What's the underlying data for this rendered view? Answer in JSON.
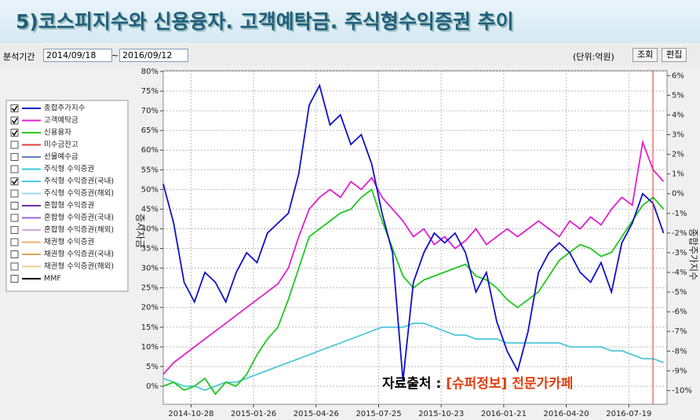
{
  "header": {
    "title": "5)코스피지수와 신용융자. 고객예탁금. 주식형수익증권 추이"
  },
  "toolbar": {
    "period_label": "분석기간",
    "start": "2014/09/18",
    "separator": "~",
    "end": "2016/09/12",
    "unit": "(단위:억원)",
    "query_button": "조회",
    "edit_button": "편집"
  },
  "legend_panel": {
    "items": [
      {
        "label": "미수금잔고",
        "color": "#e04040"
      },
      {
        "label": "선물예수금",
        "color": "#6080c0"
      },
      {
        "label": "주식형 수익증권",
        "color": "#33ccdd"
      },
      {
        "label": "주식형 수익증권(해외)",
        "color": "#99ddee"
      },
      {
        "label": "혼합형 수익증권",
        "color": "#7030a0"
      },
      {
        "label": "혼합형 수익증권(국내)",
        "color": "#9966cc"
      },
      {
        "label": "혼합형 수익증권(해외)",
        "color": "#ccaadd"
      },
      {
        "label": "채권형 수익증권",
        "color": "#f0b070"
      },
      {
        "label": "채권형 수익증권(국내)",
        "color": "#e0a060"
      },
      {
        "label": "채권형 수익증권(해외)",
        "color": "#f0c890"
      },
      {
        "label": "MMF",
        "color": "#000000"
      }
    ]
  },
  "source_note": {
    "prefix": "자료출처 : ",
    "source": "[슈퍼정보] 전문가카페"
  },
  "chart_data": {
    "type": "line",
    "ylabel": "증시자금",
    "y2label": "종합주가지수",
    "x": [
      "2014-09-18",
      "2014-10-03",
      "2014-10-18",
      "2014-11-02",
      "2014-11-17",
      "2014-12-02",
      "2014-12-17",
      "2015-01-01",
      "2015-01-16",
      "2015-01-31",
      "2015-02-15",
      "2015-03-02",
      "2015-03-17",
      "2015-04-01",
      "2015-04-16",
      "2015-05-01",
      "2015-05-16",
      "2015-05-31",
      "2015-06-15",
      "2015-06-30",
      "2015-07-15",
      "2015-07-30",
      "2015-08-14",
      "2015-08-29",
      "2015-09-13",
      "2015-09-28",
      "2015-10-13",
      "2015-10-28",
      "2015-11-12",
      "2015-11-27",
      "2015-12-12",
      "2015-12-27",
      "2016-01-11",
      "2016-01-26",
      "2016-02-10",
      "2016-02-25",
      "2016-03-11",
      "2016-03-26",
      "2016-04-10",
      "2016-04-25",
      "2016-05-10",
      "2016-05-25",
      "2016-06-09",
      "2016-06-24",
      "2016-07-09",
      "2016-07-24",
      "2016-08-08",
      "2016-08-23",
      "2016-09-07"
    ],
    "xlim": [
      "2014-09-18",
      "2016-09-12"
    ],
    "xticks": [
      "2014-10-28",
      "2015-01-26",
      "2015-04-26",
      "2015-07-25",
      "2015-10-23",
      "2016-01-21",
      "2016-04-20",
      "2016-07-19"
    ],
    "ylim": [
      -4.6,
      80.2
    ],
    "yticks": [
      {
        "value": 0,
        "label": "0%"
      },
      {
        "value": 5,
        "label": "5%"
      },
      {
        "value": 10,
        "label": "10%"
      },
      {
        "value": 15,
        "label": "15%"
      },
      {
        "value": 20,
        "label": "20%"
      },
      {
        "value": 25,
        "label": "25%"
      },
      {
        "value": 30,
        "label": "30%"
      },
      {
        "value": 35,
        "label": "35%"
      },
      {
        "value": 40,
        "label": "40%"
      },
      {
        "value": 45,
        "label": "45%"
      },
      {
        "value": 50,
        "label": "50%"
      },
      {
        "value": 55,
        "label": "55%"
      },
      {
        "value": 60,
        "label": "60%"
      },
      {
        "value": 65,
        "label": "65%"
      },
      {
        "value": 70,
        "label": "70%"
      },
      {
        "value": 75,
        "label": "75%"
      },
      {
        "value": 80,
        "label": "80%"
      }
    ],
    "y2lim": [
      -10.7,
      6.25
    ],
    "y2ticks": [
      {
        "value": -10,
        "label": "-10%"
      },
      {
        "value": -9,
        "label": "-9%"
      },
      {
        "value": -8,
        "label": "-8%"
      },
      {
        "value": -7,
        "label": "-7%"
      },
      {
        "value": -6,
        "label": "-6%"
      },
      {
        "value": -5,
        "label": "-5%"
      },
      {
        "value": -4,
        "label": "-4%"
      },
      {
        "value": -3,
        "label": "-3%"
      },
      {
        "value": -2,
        "label": "-2%"
      },
      {
        "value": -1,
        "label": "-1%"
      },
      {
        "value": 0,
        "label": "0%"
      },
      {
        "value": 1,
        "label": "1%"
      },
      {
        "value": 2,
        "label": "2%"
      },
      {
        "value": 3,
        "label": "3%"
      },
      {
        "value": 4,
        "label": "4%"
      },
      {
        "value": 5,
        "label": "5%"
      },
      {
        "value": 6,
        "label": "6%"
      }
    ],
    "grid": true,
    "series": [
      {
        "name": "종합주가지수",
        "color": "#1010c8",
        "axis": "y2",
        "values": [
          0.5,
          -1.5,
          -4.5,
          -5.5,
          -4,
          -4.5,
          -5.5,
          -4,
          -3,
          -3.5,
          -2,
          -1.5,
          -1,
          1,
          4.5,
          5.5,
          3.5,
          4,
          2.5,
          3,
          1.5,
          -1,
          -3,
          -9.5,
          -4.5,
          -3,
          -2,
          -2.5,
          -2,
          -3,
          -5,
          -4,
          -6.5,
          -8,
          -9,
          -7,
          -4,
          -3,
          -2.5,
          -3,
          -4,
          -4.5,
          -3.5,
          -5,
          -2.5,
          -1.5,
          0,
          -0.5,
          -2
        ]
      },
      {
        "name": "고객예탁금",
        "color": "#e020d0",
        "values": [
          3,
          6,
          8,
          10,
          12,
          14,
          16,
          18,
          20,
          22,
          24,
          26,
          30,
          38,
          45,
          48,
          50,
          48,
          52,
          50,
          53,
          48,
          45,
          42,
          38,
          40,
          36,
          38,
          35,
          37,
          40,
          36,
          38,
          40,
          38,
          40,
          42,
          40,
          38,
          42,
          40,
          43,
          41,
          45,
          48,
          46,
          62,
          55,
          52
        ]
      },
      {
        "name": "신용융자",
        "color": "#20c820",
        "values": [
          0,
          1,
          -1,
          0,
          2,
          -2,
          1,
          0,
          3,
          8,
          12,
          15,
          22,
          30,
          38,
          40,
          42,
          44,
          45,
          48,
          50,
          42,
          35,
          28,
          25,
          27,
          28,
          29,
          30,
          31,
          28,
          27,
          25,
          22,
          20,
          22,
          24,
          28,
          32,
          34,
          36,
          35,
          33,
          34,
          38,
          42,
          46,
          48,
          45
        ]
      },
      {
        "name": "주식형 수익증권(국내)",
        "color": "#50c8d8",
        "values": [
          2,
          1,
          0,
          0,
          -1,
          0,
          1,
          1,
          2,
          3,
          4,
          5,
          6,
          7,
          8,
          9,
          10,
          11,
          12,
          13,
          14,
          15,
          15,
          15,
          16,
          16,
          15,
          14,
          13,
          13,
          12,
          12,
          12,
          11,
          11,
          11,
          11,
          11,
          11,
          10,
          10,
          10,
          10,
          9,
          9,
          8,
          7,
          7,
          6
        ]
      }
    ]
  }
}
